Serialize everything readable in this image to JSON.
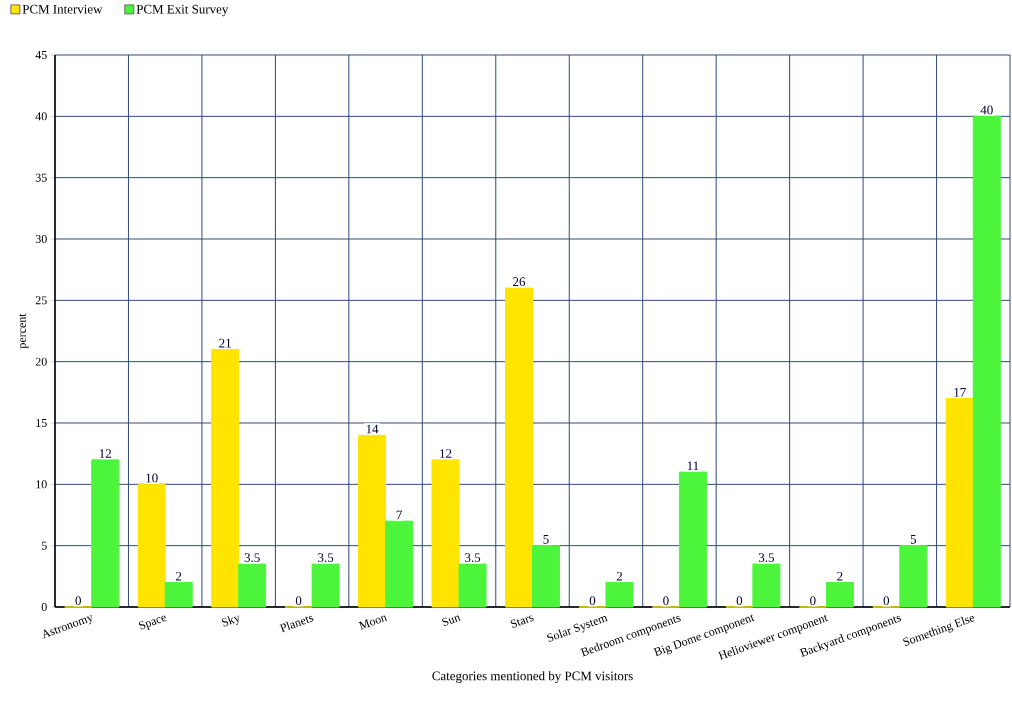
{
  "chart_data": {
    "type": "bar",
    "xlabel": "Categories mentioned by PCM visitors",
    "ylabel": "percent",
    "categories": [
      "Astronomy",
      "Space",
      "Sky",
      "Planets",
      "Moon",
      "Sun",
      "Stars",
      "Solar System",
      "Bedroom components",
      "Big Dome component",
      "Helioviewer component",
      "Backyard components",
      "Something Else"
    ],
    "series": [
      {
        "name": "PCM Interview",
        "color": "#ffe400",
        "values": [
          0,
          10,
          21,
          0,
          14,
          12,
          26,
          0,
          0,
          0,
          0,
          0,
          17
        ]
      },
      {
        "name": "PCM Exit Survey",
        "color": "#4cf53c",
        "values": [
          12,
          2,
          3.5,
          3.5,
          7,
          3.5,
          5,
          2,
          11,
          3.5,
          2,
          5,
          40
        ]
      }
    ],
    "ylim": [
      0,
      45
    ],
    "yticks": [
      0,
      5,
      10,
      15,
      20,
      25,
      30,
      35,
      40,
      45
    ],
    "grid": true,
    "legend": "top left",
    "data_labels": true
  }
}
